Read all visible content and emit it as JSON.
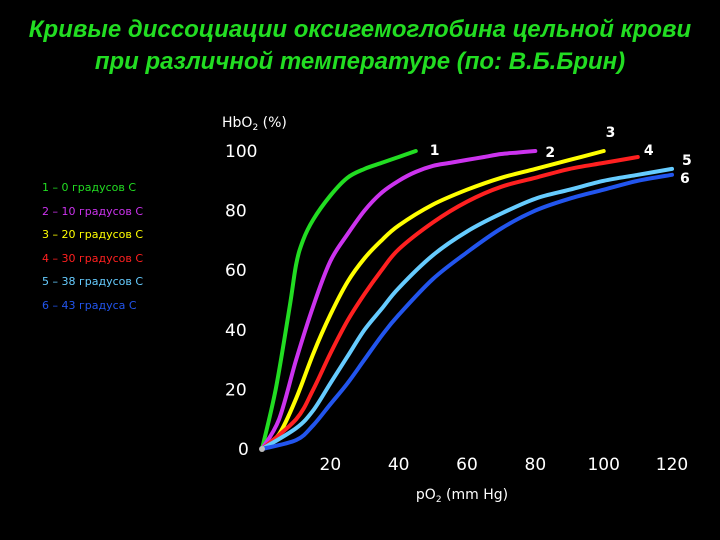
{
  "title": {
    "line1": "Кривые диссоциации оксигемоглобина цельной крови",
    "line2": "при различной температуре (по: В.Б.Брин)"
  },
  "colors": {
    "background": "#000000",
    "title": "#22dd22",
    "axis_text": "#ffffff"
  },
  "legend": [
    {
      "label": "1 – 0  градусов  С",
      "color": "#22dd22"
    },
    {
      "label": "2 – 10 градусов С",
      "color": "#cc33ee"
    },
    {
      "label": "3 – 20 градусов С",
      "color": "#ffff00"
    },
    {
      "label": "4 – 30 градусов С",
      "color": "#ff2020"
    },
    {
      "label": "5 – 38 градусов С",
      "color": "#66ccff"
    },
    {
      "label": "6 – 43 градуса С",
      "color": "#2255ee"
    }
  ],
  "chart_data": {
    "type": "line",
    "ylabel": "HbO2 (%)",
    "xlabel": "pO2 (mm Hg)",
    "xlim": [
      0,
      120
    ],
    "ylim": [
      0,
      100
    ],
    "x_ticks": [
      20,
      40,
      60,
      80,
      100,
      120
    ],
    "y_ticks": [
      0,
      20,
      40,
      60,
      80,
      100
    ],
    "legend_position": "left",
    "series": [
      {
        "name": "1",
        "color": "#22dd22",
        "x": [
          0,
          4,
          8,
          10,
          12,
          15,
          20,
          25,
          30,
          35,
          40,
          45
        ],
        "y": [
          0,
          20,
          47,
          62,
          70,
          77,
          85,
          91,
          94,
          96,
          98,
          100
        ]
      },
      {
        "name": "2",
        "color": "#cc33ee",
        "x": [
          0,
          5,
          10,
          15,
          20,
          25,
          30,
          35,
          40,
          45,
          50,
          55,
          60,
          65,
          70,
          75,
          80
        ],
        "y": [
          0,
          10,
          30,
          48,
          63,
          72,
          80,
          86,
          90,
          93,
          95,
          96,
          97,
          98,
          99,
          99.5,
          100
        ]
      },
      {
        "name": "3",
        "color": "#ffff00",
        "x": [
          0,
          5,
          10,
          15,
          20,
          25,
          30,
          35,
          40,
          50,
          60,
          70,
          80,
          90,
          100
        ],
        "y": [
          0,
          5,
          17,
          32,
          45,
          56,
          64,
          70,
          75,
          82,
          87,
          91,
          94,
          97,
          100
        ]
      },
      {
        "name": "4",
        "color": "#ff2020",
        "x": [
          0,
          10,
          15,
          20,
          25,
          30,
          35,
          40,
          50,
          60,
          70,
          80,
          90,
          100,
          110
        ],
        "y": [
          0,
          10,
          20,
          32,
          43,
          52,
          60,
          67,
          76,
          83,
          88,
          91,
          94,
          96,
          98
        ]
      },
      {
        "name": "5",
        "color": "#66ccff",
        "x": [
          0,
          10,
          15,
          20,
          25,
          30,
          35,
          40,
          50,
          60,
          70,
          80,
          90,
          100,
          110,
          120
        ],
        "y": [
          0,
          7,
          13,
          22,
          31,
          40,
          47,
          54,
          65,
          73,
          79,
          84,
          87,
          90,
          92,
          94
        ]
      },
      {
        "name": "6",
        "color": "#2255ee",
        "x": [
          0,
          10,
          15,
          20,
          25,
          30,
          35,
          40,
          50,
          60,
          70,
          80,
          90,
          100,
          110,
          120
        ],
        "y": [
          0,
          3,
          8,
          15,
          22,
          30,
          38,
          45,
          57,
          66,
          74,
          80,
          84,
          87,
          90,
          92
        ]
      }
    ]
  }
}
